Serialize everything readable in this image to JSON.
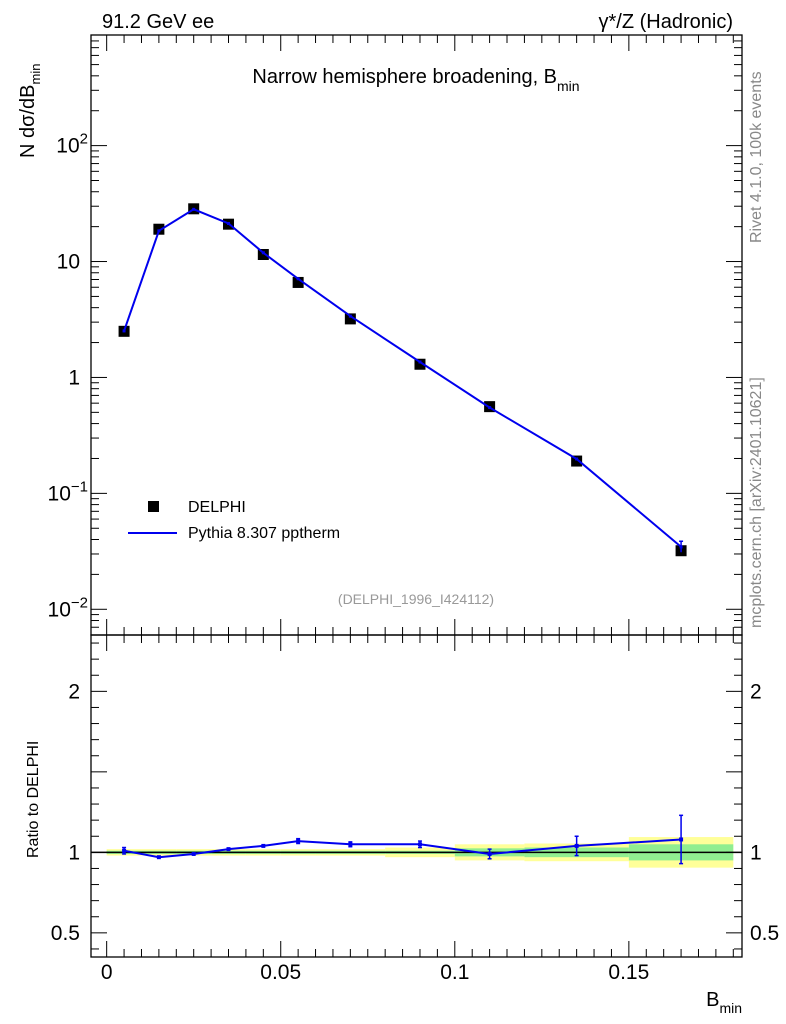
{
  "header": {
    "left": "91.2 GeV ee",
    "right": "γ*/Z (Hadronic)"
  },
  "side_labels": {
    "rivet": "Rivet 4.1.0,  100k events",
    "mcplots": "mcplots.cern.ch [arXiv:2401.10621]"
  },
  "chart_data": {
    "type": "line",
    "title": "Narrow hemisphere broadening, B",
    "title_sub": "min",
    "analysis_ref": "(DELPHI_1996_I424112)",
    "xlabel": "B",
    "xlabel_sub": "min",
    "ylabel_main": "N  dσ/dB",
    "ylabel_sub": "min",
    "ylabel_ratio": "Ratio to DELPHI",
    "xlim": [
      -0.0045,
      0.1825
    ],
    "ylim_log": [
      0.006,
      900
    ],
    "ratio_ylim": [
      0.35,
      2.35
    ],
    "x_ticks": [
      0,
      0.05,
      0.1,
      0.15
    ],
    "x_tick_labels": [
      "0",
      "0.05",
      "0.1",
      "0.15"
    ],
    "y_ticks": [
      0.01,
      0.1,
      1,
      10,
      100
    ],
    "y_tick_labels": [
      {
        "base": "10",
        "exp": "−2"
      },
      {
        "base": "10",
        "exp": "−1"
      },
      {
        "base": "1",
        "exp": ""
      },
      {
        "base": "10",
        "exp": ""
      },
      {
        "base": "10",
        "exp": "2"
      }
    ],
    "ratio_ticks": [
      0.5,
      1,
      2
    ],
    "ratio_tick_labels": [
      "0.5",
      "1",
      "2"
    ],
    "legend": {
      "position": "lower-left",
      "data_label": "DELPHI",
      "mc_label": "Pythia 8.307 pptherm"
    },
    "bins": [
      {
        "lo": 0.0,
        "hi": 0.01
      },
      {
        "lo": 0.01,
        "hi": 0.02
      },
      {
        "lo": 0.02,
        "hi": 0.03
      },
      {
        "lo": 0.03,
        "hi": 0.04
      },
      {
        "lo": 0.04,
        "hi": 0.05
      },
      {
        "lo": 0.05,
        "hi": 0.06
      },
      {
        "lo": 0.06,
        "hi": 0.08
      },
      {
        "lo": 0.08,
        "hi": 0.1
      },
      {
        "lo": 0.1,
        "hi": 0.12
      },
      {
        "lo": 0.12,
        "hi": 0.15
      },
      {
        "lo": 0.15,
        "hi": 0.18
      }
    ],
    "x": [
      0.005,
      0.015,
      0.025,
      0.035,
      0.045,
      0.055,
      0.07,
      0.09,
      0.11,
      0.135,
      0.165
    ],
    "data_values": [
      2.5,
      19.0,
      28.5,
      21.0,
      11.5,
      6.6,
      3.2,
      1.3,
      0.56,
      0.19,
      0.032
    ],
    "data_band_stat": [
      0.01,
      0.01,
      0.01,
      0.01,
      0.01,
      0.01,
      0.01,
      0.01,
      0.025,
      0.03,
      0.05
    ],
    "data_band_total": [
      0.02,
      0.02,
      0.02,
      0.02,
      0.02,
      0.02,
      0.02,
      0.03,
      0.05,
      0.055,
      0.095
    ],
    "mc_values": [
      2.52,
      18.4,
      28.2,
      21.3,
      11.9,
      7.1,
      3.38,
      1.36,
      0.55,
      0.198,
      0.0345
    ],
    "ratio_values": [
      1.01,
      0.97,
      0.99,
      1.02,
      1.04,
      1.07,
      1.05,
      1.05,
      0.99,
      1.04,
      1.08
    ],
    "ratio_errors": [
      0.02,
      0.005,
      0.005,
      0.008,
      0.01,
      0.015,
      0.015,
      0.02,
      0.03,
      0.06,
      0.15
    ],
    "colors": {
      "mc": "#0000ee",
      "data": "#000000",
      "band_stat": "#90ee90",
      "band_total": "#ffff99"
    }
  }
}
